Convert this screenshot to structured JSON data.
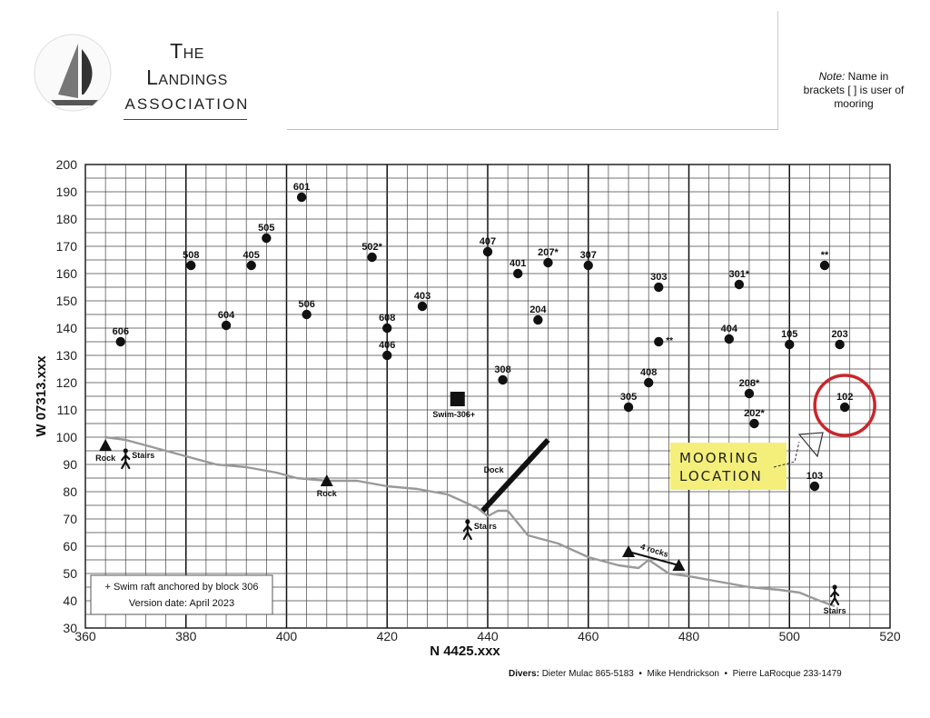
{
  "header": {
    "logo_line1": "The",
    "logo_line2": "Landings",
    "logo_line3": "Association",
    "note_italic": "Note:",
    "note_text": "Name in brackets [ ] is user of mooring"
  },
  "map_data": {
    "x_axis": {
      "label": "N 4425.xxx",
      "min": 360,
      "max": 520,
      "ticks": [
        360,
        380,
        400,
        420,
        440,
        460,
        480,
        500,
        520
      ]
    },
    "y_axis": {
      "label": "W 07313.xxx",
      "min": 30,
      "max": 200,
      "ticks": [
        30,
        40,
        50,
        60,
        70,
        80,
        90,
        100,
        110,
        120,
        130,
        140,
        150,
        160,
        170,
        180,
        190,
        200
      ]
    },
    "moorings": [
      {
        "label": "601",
        "x": 403,
        "y": 188
      },
      {
        "label": "505",
        "x": 396,
        "y": 173
      },
      {
        "label": "508",
        "x": 381,
        "y": 163
      },
      {
        "label": "405",
        "x": 393,
        "y": 163
      },
      {
        "label": "502*",
        "x": 417,
        "y": 166
      },
      {
        "label": "407",
        "x": 440,
        "y": 168
      },
      {
        "label": "401",
        "x": 446,
        "y": 160
      },
      {
        "label": "207*",
        "x": 452,
        "y": 164
      },
      {
        "label": "307",
        "x": 460,
        "y": 163
      },
      {
        "label": "303",
        "x": 474,
        "y": 155
      },
      {
        "label": "301*",
        "x": 490,
        "y": 156
      },
      {
        "label": "**",
        "x": 507,
        "y": 163
      },
      {
        "label": "604",
        "x": 388,
        "y": 141
      },
      {
        "label": "506",
        "x": 404,
        "y": 145
      },
      {
        "label": "403",
        "x": 427,
        "y": 148
      },
      {
        "label": "608",
        "x": 420,
        "y": 140
      },
      {
        "label": "204",
        "x": 450,
        "y": 143
      },
      {
        "label": "606",
        "x": 367,
        "y": 135
      },
      {
        "label": "406",
        "x": 420,
        "y": 130
      },
      {
        "label": "**",
        "x": 474,
        "y": 135
      },
      {
        "label": "404",
        "x": 488,
        "y": 136
      },
      {
        "label": "105",
        "x": 500,
        "y": 134
      },
      {
        "label": "203",
        "x": 510,
        "y": 134
      },
      {
        "label": "308",
        "x": 443,
        "y": 121
      },
      {
        "label": "408",
        "x": 472,
        "y": 120
      },
      {
        "label": "208*",
        "x": 492,
        "y": 116
      },
      {
        "label": "305",
        "x": 468,
        "y": 111
      },
      {
        "label": "202*",
        "x": 493,
        "y": 105
      },
      {
        "label": "102",
        "x": 511,
        "y": 111
      },
      {
        "label": "103",
        "x": 505,
        "y": 82
      }
    ],
    "swim_raft": {
      "label": "Swim-306+",
      "x": 434,
      "y": 114
    },
    "rocks": [
      {
        "label": "Rock",
        "x": 364,
        "y": 97
      },
      {
        "label": "Rock",
        "x": 408,
        "y": 84
      }
    ],
    "four_rocks": {
      "label": "4 rocks",
      "from": [
        468,
        58
      ],
      "to": [
        478,
        53
      ]
    },
    "stairs": [
      {
        "label": "Stairs",
        "x": 368,
        "y": 92
      },
      {
        "label": "Stairs",
        "x": 436,
        "y": 66
      },
      {
        "label": "Stairs",
        "x": 509,
        "y": 42
      }
    ],
    "dock": {
      "label": "Dock",
      "from": [
        439,
        73
      ],
      "to": [
        452,
        99
      ]
    },
    "shoreline": [
      [
        364,
        100
      ],
      [
        368,
        99
      ],
      [
        374,
        96
      ],
      [
        380,
        93
      ],
      [
        386,
        90
      ],
      [
        392,
        89
      ],
      [
        398,
        87
      ],
      [
        402,
        85
      ],
      [
        408,
        84
      ],
      [
        414,
        84
      ],
      [
        420,
        82
      ],
      [
        426,
        81
      ],
      [
        432,
        79
      ],
      [
        438,
        74
      ],
      [
        440,
        71
      ],
      [
        442,
        73
      ],
      [
        444,
        73
      ],
      [
        448,
        64
      ],
      [
        454,
        61
      ],
      [
        460,
        56
      ],
      [
        466,
        53
      ],
      [
        470,
        52
      ],
      [
        472,
        55
      ],
      [
        476,
        50
      ],
      [
        480,
        49
      ],
      [
        486,
        47
      ],
      [
        492,
        45
      ],
      [
        498,
        44
      ],
      [
        502,
        43
      ],
      [
        506,
        40
      ],
      [
        509,
        38
      ]
    ],
    "highlight_mooring": "102",
    "annotation": {
      "line1": "Mooring",
      "line2": "Location"
    },
    "legend": {
      "line1": "+ Swim raft anchored by block 306",
      "line2": "Version date: April 2023"
    }
  },
  "footer": {
    "divers_label": "Divers:",
    "diver1": "Dieter Mulac 865-5183",
    "diver2": "Mike Hendrickson",
    "diver3": "Pierre LaRocque 233-1479",
    "separator": "•"
  },
  "colors": {
    "grid_minor": "#444444",
    "grid_major": "#111111",
    "shoreline": "#999999",
    "highlight_circle": "#c8262c",
    "sticky_note": "#f3ef7a"
  }
}
